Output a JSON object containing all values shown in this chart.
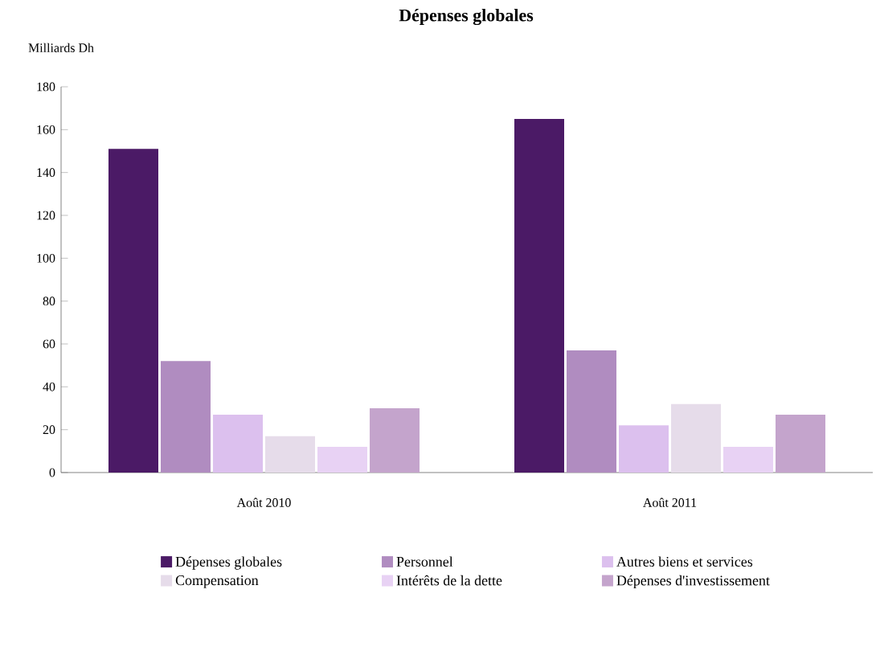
{
  "chart_data": {
    "type": "bar",
    "title": "Dépenses globales",
    "ylabel": "Milliards Dh",
    "categories": [
      "Août 2010",
      "Août 2011"
    ],
    "series": [
      {
        "name": "Dépenses globales",
        "color": "#4b1a66",
        "values": [
          151,
          165
        ]
      },
      {
        "name": "Personnel",
        "color": "#b08cc0",
        "values": [
          52,
          57
        ]
      },
      {
        "name": "Autres biens et services",
        "color": "#dcc0ee",
        "values": [
          27,
          22
        ]
      },
      {
        "name": "Compensation",
        "color": "#e6dcea",
        "values": [
          17,
          32
        ]
      },
      {
        "name": "Intérêts de la dette",
        "color": "#e8d2f4",
        "values": [
          12,
          12
        ]
      },
      {
        "name": "Dépenses d'investissement",
        "color": "#c4a4cc",
        "values": [
          30,
          27
        ]
      }
    ],
    "ylim": [
      0,
      180
    ],
    "yticks": [
      0,
      20,
      40,
      60,
      80,
      100,
      120,
      140,
      160,
      180
    ],
    "grid": false,
    "legend": "bottom"
  }
}
